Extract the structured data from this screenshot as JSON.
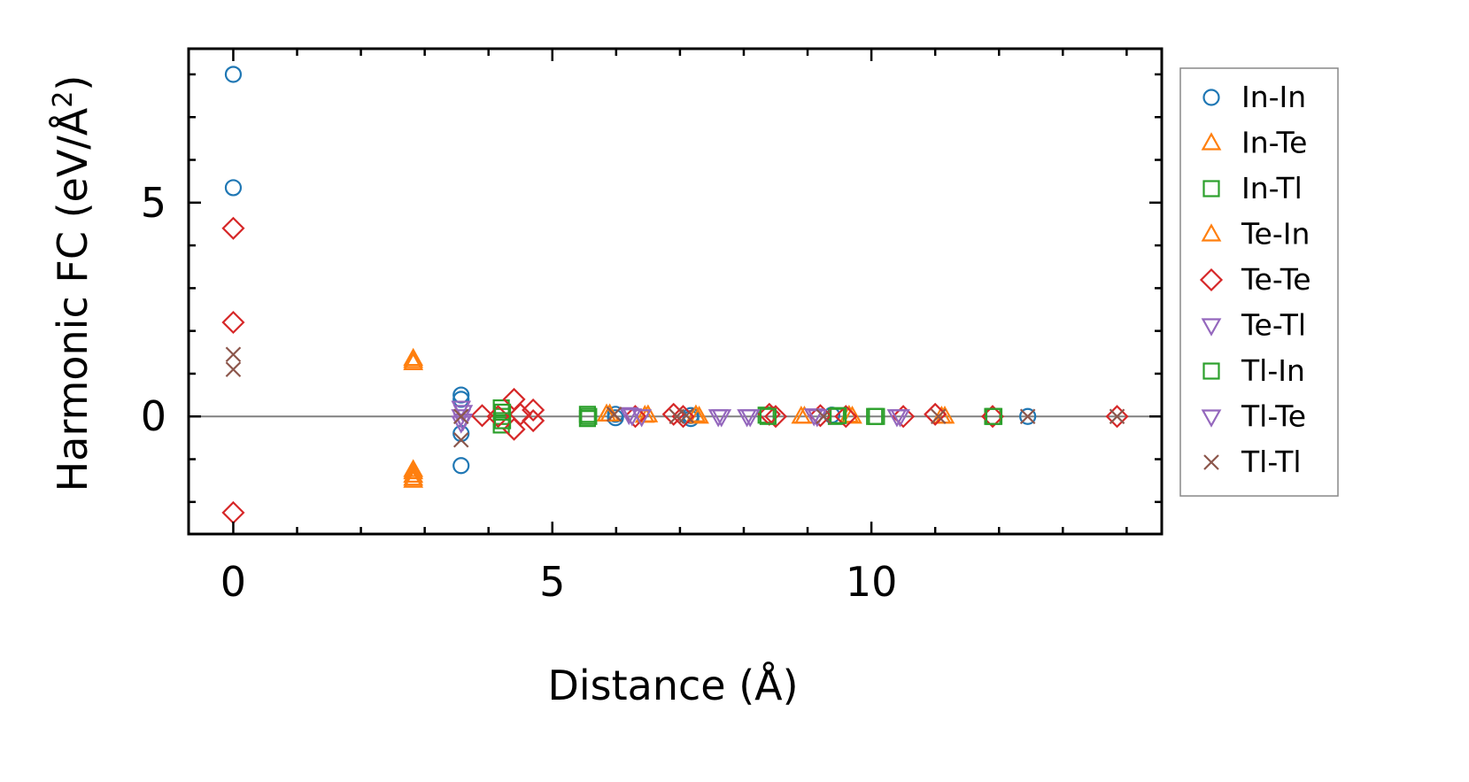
{
  "chart_data": {
    "type": "scatter",
    "xlabel": "Distance (Å)",
    "ylabel": "Harmonic FC (eV/Å",
    "ylabel_sup": "2",
    "ylabel_close": ")",
    "xlim": [
      -0.7,
      14.55
    ],
    "ylim": [
      -2.75,
      8.6
    ],
    "x_ticks": [
      0,
      5,
      10
    ],
    "x_tick_labels": [
      "0",
      "5",
      "10"
    ],
    "y_ticks": [
      0,
      5
    ],
    "y_tick_labels": [
      "0",
      "5"
    ],
    "zero_line": true,
    "grid": false,
    "legend_position": "right",
    "series": [
      {
        "name": "In-In",
        "marker": "circle",
        "color": "#1f77b4",
        "filled": false,
        "points": [
          [
            0,
            8.0
          ],
          [
            0,
            5.35
          ],
          [
            3.57,
            0.5
          ],
          [
            3.57,
            0.4
          ],
          [
            3.57,
            -0.4
          ],
          [
            3.57,
            -1.15
          ],
          [
            5.99,
            0.05
          ],
          [
            5.99,
            -0.03
          ],
          [
            7.17,
            0.02
          ],
          [
            7.17,
            -0.05
          ],
          [
            9.38,
            0.03
          ],
          [
            12.45,
            0.0
          ]
        ]
      },
      {
        "name": "In-Te",
        "marker": "triangle-up",
        "color": "#ff7f0e",
        "filled": false,
        "points": [
          [
            2.82,
            1.35
          ],
          [
            2.82,
            1.25
          ],
          [
            2.82,
            -1.25
          ],
          [
            2.82,
            -1.38
          ],
          [
            2.82,
            -1.5
          ],
          [
            5.85,
            0.05
          ],
          [
            6.45,
            0.02
          ],
          [
            7.25,
            0.03
          ],
          [
            8.9,
            0.0
          ],
          [
            9.65,
            0.02
          ],
          [
            11.1,
            0.0
          ]
        ]
      },
      {
        "name": "In-Tl",
        "marker": "square",
        "color": "#2ca02c",
        "filled": false,
        "points": [
          [
            4.2,
            0.2
          ],
          [
            4.2,
            0.0
          ],
          [
            4.2,
            -0.2
          ],
          [
            5.55,
            0.05
          ],
          [
            5.55,
            -0.05
          ],
          [
            8.35,
            0.03
          ],
          [
            9.45,
            0.0
          ],
          [
            10.05,
            0.0
          ],
          [
            11.9,
            0.0
          ]
        ]
      },
      {
        "name": "Te-In",
        "marker": "triangle-up",
        "color": "#ff7f0e",
        "filled": false,
        "points": [
          [
            2.82,
            1.3
          ],
          [
            2.82,
            -1.3
          ],
          [
            2.82,
            -1.45
          ],
          [
            5.9,
            0.05
          ],
          [
            6.5,
            0.03
          ],
          [
            7.3,
            0.0
          ],
          [
            8.95,
            0.0
          ],
          [
            9.7,
            0.0
          ],
          [
            11.15,
            0.0
          ]
        ]
      },
      {
        "name": "Te-Te",
        "marker": "diamond",
        "color": "#d62728",
        "filled": false,
        "points": [
          [
            0,
            4.4
          ],
          [
            0,
            2.2
          ],
          [
            0,
            -2.25
          ],
          [
            3.9,
            0.02
          ],
          [
            4.15,
            0.0
          ],
          [
            4.4,
            0.4
          ],
          [
            4.4,
            -0.3
          ],
          [
            4.5,
            0.05
          ],
          [
            4.7,
            0.15
          ],
          [
            4.7,
            -0.1
          ],
          [
            6.3,
            0.0
          ],
          [
            6.9,
            0.05
          ],
          [
            7.05,
            0.0
          ],
          [
            8.4,
            0.05
          ],
          [
            8.5,
            0.0
          ],
          [
            9.2,
            0.02
          ],
          [
            9.6,
            0.0
          ],
          [
            10.5,
            0.0
          ],
          [
            11.0,
            0.05
          ],
          [
            11.9,
            0.0
          ],
          [
            13.85,
            0.0
          ]
        ]
      },
      {
        "name": "Te-Tl",
        "marker": "triangle-down",
        "color": "#9467bd",
        "filled": false,
        "points": [
          [
            3.57,
            0.2
          ],
          [
            3.57,
            0.0
          ],
          [
            3.57,
            -0.15
          ],
          [
            6.2,
            0.05
          ],
          [
            6.4,
            0.0
          ],
          [
            7.6,
            0.0
          ],
          [
            8.05,
            0.0
          ],
          [
            9.1,
            0.02
          ],
          [
            10.4,
            0.0
          ]
        ]
      },
      {
        "name": "Tl-In",
        "marker": "square",
        "color": "#2ca02c",
        "filled": false,
        "points": [
          [
            4.22,
            0.1
          ],
          [
            4.22,
            -0.1
          ],
          [
            5.57,
            0.0
          ],
          [
            8.38,
            0.0
          ],
          [
            9.48,
            0.02
          ],
          [
            10.08,
            0.0
          ],
          [
            11.92,
            0.0
          ]
        ]
      },
      {
        "name": "Tl-Te",
        "marker": "triangle-down",
        "color": "#9467bd",
        "filled": false,
        "points": [
          [
            3.6,
            0.1
          ],
          [
            3.6,
            -0.1
          ],
          [
            6.25,
            0.02
          ],
          [
            7.65,
            0.0
          ],
          [
            8.1,
            0.0
          ],
          [
            9.15,
            0.0
          ],
          [
            10.45,
            0.0
          ]
        ]
      },
      {
        "name": "Tl-Tl",
        "marker": "x",
        "color": "#8c564b",
        "filled": false,
        "points": [
          [
            0,
            1.45
          ],
          [
            0,
            1.1
          ],
          [
            3.57,
            -0.55
          ],
          [
            3.57,
            0.0
          ],
          [
            5.97,
            0.05
          ],
          [
            6.95,
            0.0
          ],
          [
            7.1,
            0.02
          ],
          [
            9.25,
            0.0
          ],
          [
            11.05,
            0.0
          ],
          [
            12.45,
            0.0
          ],
          [
            13.85,
            0.0
          ]
        ]
      }
    ]
  }
}
